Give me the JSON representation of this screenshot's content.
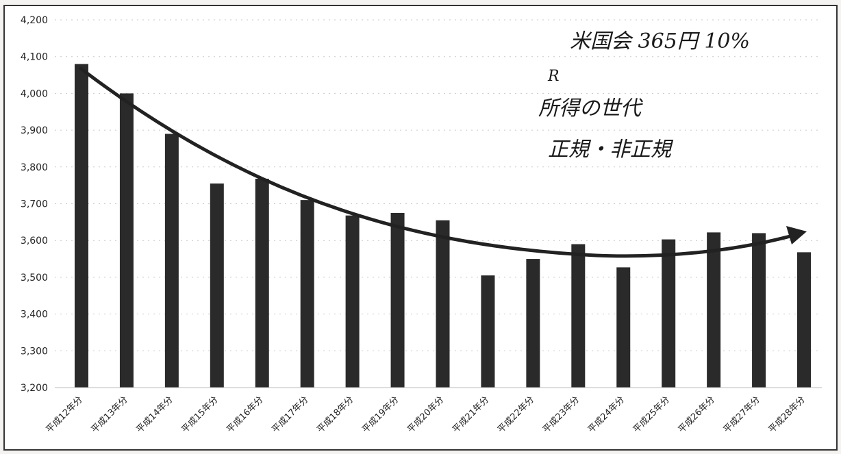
{
  "chart_data": {
    "type": "bar",
    "title": "",
    "xlabel": "",
    "ylabel": "",
    "ylim": [
      3200,
      4200
    ],
    "yticks": [
      3200,
      3300,
      3400,
      3500,
      3600,
      3700,
      3800,
      3900,
      4000,
      4100,
      4200
    ],
    "ytick_labels": [
      "3,200",
      "3,300",
      "3,400",
      "3,500",
      "3,600",
      "3,700",
      "3,800",
      "3,900",
      "4,000",
      "4,100",
      "4,200"
    ],
    "categories": [
      "平成12年分",
      "平成13年分",
      "平成14年分",
      "平成15年分",
      "平成16年分",
      "平成17年分",
      "平成18年分",
      "平成19年分",
      "平成20年分",
      "平成21年分",
      "平成22年分",
      "平成23年分",
      "平成24年分",
      "平成25年分",
      "平成26年分",
      "平成27年分",
      "平成28年分"
    ],
    "values": [
      4080,
      4000,
      3890,
      3755,
      3768,
      3710,
      3668,
      3675,
      3655,
      3505,
      3550,
      3590,
      3527,
      3603,
      3622,
      3620,
      3568
    ],
    "grid": true,
    "legend": "none",
    "trend_arrow": true,
    "bar_color": "#2a2a2a",
    "handwritten_notes": [
      "米国会 365円 10%",
      "R",
      "所得の世代",
      "正規・非正規"
    ]
  }
}
